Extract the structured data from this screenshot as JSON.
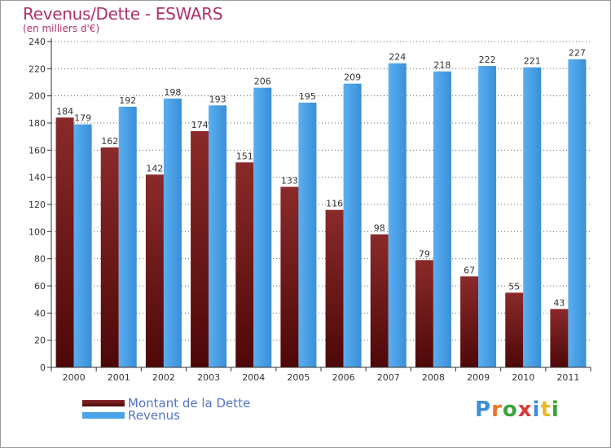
{
  "title": "Revenus/Dette - ESWARS",
  "subtitle": "(en milliers d'€)",
  "colors": {
    "title": "#b0306a",
    "dette": "#7a1f1f",
    "revenus": "#4aa3e8",
    "legend_text": "#5573c9",
    "grid": "#555555"
  },
  "legend": {
    "items": [
      {
        "label": "Montant de la Dette",
        "color": "#6b0f0f"
      },
      {
        "label": "Revenus",
        "color": "#4aa3e8"
      }
    ]
  },
  "logo": {
    "text": "Proxiti",
    "letter_colors": [
      "#3b8fd6",
      "#e8762b",
      "#3aa33a",
      "#d93a3a",
      "#3b8fd6",
      "#e8b82b",
      "#3aa33a"
    ]
  },
  "chart_data": {
    "type": "bar",
    "title": "Revenus/Dette - ESWARS",
    "subtitle": "(en milliers d'€)",
    "categories": [
      "2000",
      "2001",
      "2002",
      "2003",
      "2004",
      "2005",
      "2006",
      "2007",
      "2008",
      "2009",
      "2010",
      "2011"
    ],
    "series": [
      {
        "name": "Montant de la Dette",
        "values": [
          184,
          162,
          142,
          174,
          151,
          133,
          116,
          98,
          79,
          67,
          55,
          43
        ]
      },
      {
        "name": "Revenus",
        "values": [
          179,
          192,
          198,
          193,
          206,
          195,
          209,
          224,
          218,
          222,
          221,
          227
        ]
      }
    ],
    "ylim": [
      0,
      240
    ],
    "yticks": [
      0,
      20,
      40,
      60,
      80,
      100,
      120,
      140,
      160,
      180,
      200,
      220,
      240
    ],
    "grid": true,
    "data_labels": true,
    "legend_position": "bottom-left"
  }
}
